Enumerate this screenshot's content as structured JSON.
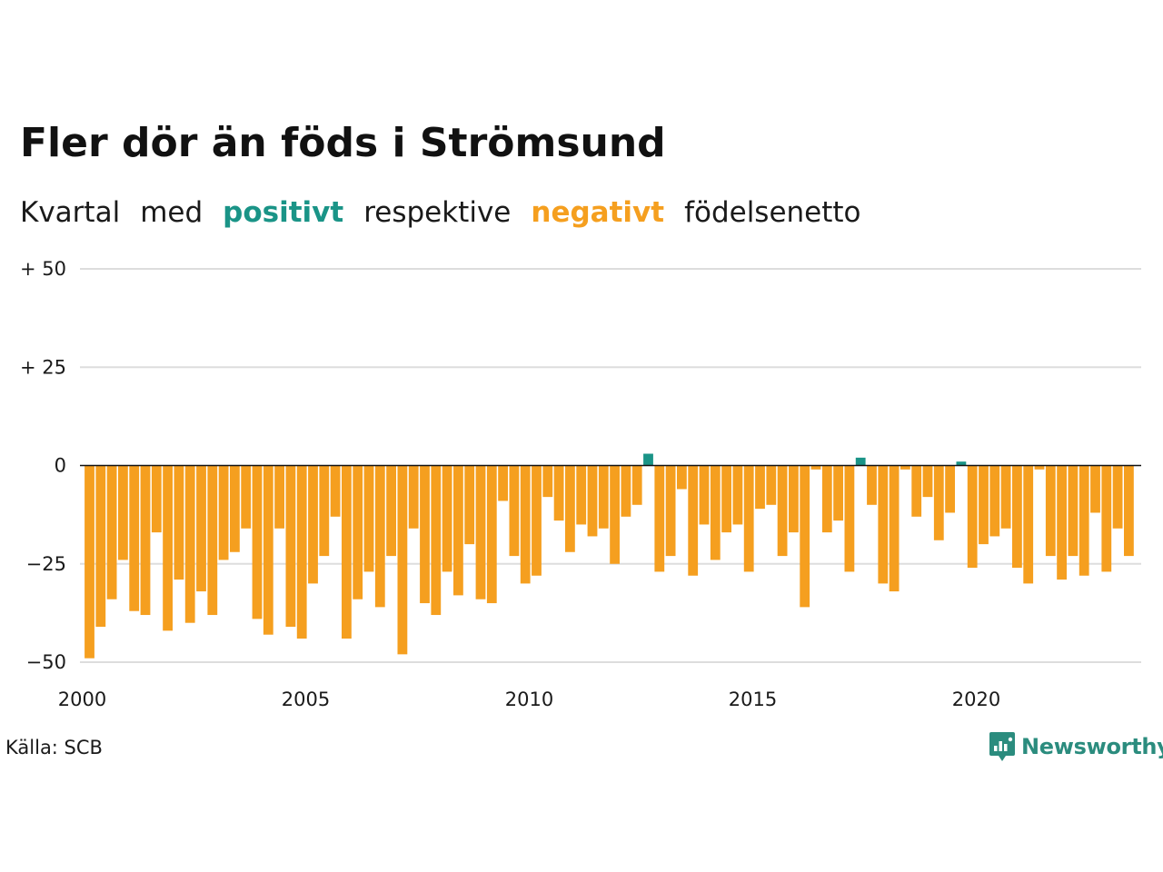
{
  "title": "Fler dör än föds i Strömsund",
  "subtitle": {
    "part1": "Kvartal",
    "part2": "med",
    "positive_word": "positivt",
    "part3": "respektive",
    "negative_word": "negativt",
    "part4": "födelsenetto"
  },
  "source": "Källa: SCB",
  "brand": "Newsworthy",
  "colors": {
    "positive": "#1a9487",
    "negative": "#f59f1f",
    "grid": "#dddddd",
    "zero_line": "#111111",
    "brand": "#2b8c7e"
  },
  "chart_data": {
    "type": "bar",
    "x_start": 2000,
    "x_step": 0.25,
    "ylim": [
      -50,
      50
    ],
    "y_ticks": [
      {
        "value": 50,
        "label": "+ 50"
      },
      {
        "value": 25,
        "label": "+ 25"
      },
      {
        "value": 0,
        "label": "0"
      },
      {
        "value": -25,
        "label": "−25"
      },
      {
        "value": -50,
        "label": "−50"
      }
    ],
    "x_ticks": [
      {
        "value": 2000,
        "label": "2000"
      },
      {
        "value": 2005,
        "label": "2005"
      },
      {
        "value": 2010,
        "label": "2010"
      },
      {
        "value": 2015,
        "label": "2015"
      },
      {
        "value": 2020,
        "label": "2020"
      }
    ],
    "values": [
      -49,
      -41,
      -34,
      -24,
      -37,
      -38,
      -17,
      -42,
      -29,
      -40,
      -32,
      -38,
      -24,
      -22,
      -16,
      -39,
      -43,
      -16,
      -41,
      -44,
      -30,
      -23,
      -13,
      -44,
      -34,
      -27,
      -36,
      -23,
      -48,
      -16,
      -35,
      -38,
      -27,
      -33,
      -20,
      -34,
      -35,
      -9,
      -23,
      -30,
      -28,
      -8,
      -14,
      -22,
      -15,
      -18,
      -16,
      -25,
      -13,
      -10,
      3,
      -27,
      -23,
      -6,
      -28,
      -15,
      -24,
      -17,
      -15,
      -27,
      -11,
      -10,
      -23,
      -17,
      -36,
      -1,
      -17,
      -14,
      -27,
      2,
      -10,
      -30,
      -32,
      -1,
      -13,
      -8,
      -19,
      -12,
      1,
      -26,
      -20,
      -18,
      -16,
      -26,
      -30,
      -1,
      -23,
      -29,
      -23,
      -28,
      -12,
      -27,
      -16,
      -23
    ]
  }
}
